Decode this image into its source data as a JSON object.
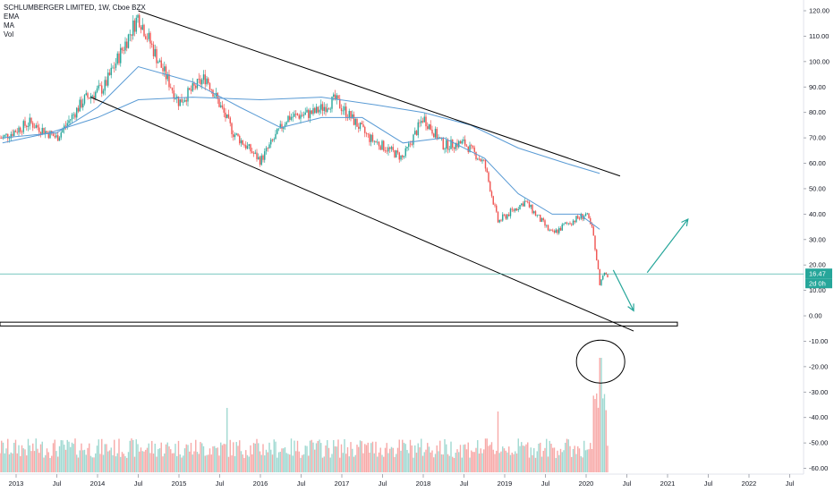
{
  "legend": {
    "title": "SCHLUMBERGER LIMITED, 1W, Cboe BZX",
    "line2": "EMA",
    "line3": "MA",
    "line4": "Vol"
  },
  "price_tag": {
    "value": "16.47",
    "countdown": "2d 0h",
    "color": "#26a69a"
  },
  "colors": {
    "up": "#26a69a",
    "down": "#ef5350",
    "vol_up": "#9fd9d1",
    "vol_down": "#f7a9a7",
    "ma": "#5a9bd5",
    "trend": "#000000"
  },
  "chart_data": {
    "type": "candlestick",
    "y_axis": {
      "ticks": [
        "120.00",
        "110.00",
        "100.00",
        "90.00",
        "80.00",
        "70.00",
        "60.00",
        "50.00",
        "40.00",
        "30.00",
        "20.00",
        "10.00",
        "0.00",
        "-10.00",
        "-20.00",
        "-30.00",
        "-40.00",
        "-50.00",
        "-60.00"
      ]
    },
    "x_axis": {
      "ticks": [
        "2013",
        "Jul",
        "2014",
        "Jul",
        "2015",
        "Jul",
        "2016",
        "Jul",
        "2017",
        "Jul",
        "2018",
        "Jul",
        "2019",
        "Jul",
        "2020",
        "Jul",
        "2021",
        "Jul",
        "2022",
        "Jul"
      ]
    },
    "price_path": [
      [
        "2012-11",
        70
      ],
      [
        "2013-03",
        76
      ],
      [
        "2013-07",
        70
      ],
      [
        "2013-11",
        85
      ],
      [
        "2014-02",
        90
      ],
      [
        "2014-07",
        118
      ],
      [
        "2014-10",
        100
      ],
      [
        "2015-01",
        84
      ],
      [
        "2015-05",
        94
      ],
      [
        "2015-09",
        72
      ],
      [
        "2016-01",
        61
      ],
      [
        "2016-05",
        78
      ],
      [
        "2016-09",
        80
      ],
      [
        "2016-12",
        85
      ],
      [
        "2017-05",
        70
      ],
      [
        "2017-10",
        62
      ],
      [
        "2018-01",
        78
      ],
      [
        "2018-04",
        67
      ],
      [
        "2018-07",
        68
      ],
      [
        "2018-10",
        60
      ],
      [
        "2018-12",
        37
      ],
      [
        "2019-04",
        45
      ],
      [
        "2019-08",
        32
      ],
      [
        "2019-10",
        36
      ],
      [
        "2020-01",
        40
      ],
      [
        "2020-02",
        33
      ],
      [
        "2020-03",
        13
      ],
      [
        "2020-04",
        16.47
      ]
    ],
    "ema_path": [
      [
        "2012-11",
        70
      ],
      [
        "2013-07",
        72
      ],
      [
        "2014-01",
        82
      ],
      [
        "2014-07",
        98
      ],
      [
        "2015-03",
        92
      ],
      [
        "2015-10",
        82
      ],
      [
        "2016-04",
        74
      ],
      [
        "2016-10",
        78
      ],
      [
        "2017-04",
        78
      ],
      [
        "2017-10",
        68
      ],
      [
        "2018-04",
        70
      ],
      [
        "2018-10",
        62
      ],
      [
        "2019-03",
        48
      ],
      [
        "2019-08",
        40
      ],
      [
        "2019-12",
        40
      ],
      [
        "2020-03",
        34
      ]
    ],
    "ma_path": [
      [
        "2012-11",
        68
      ],
      [
        "2013-06",
        72
      ],
      [
        "2014-01",
        78
      ],
      [
        "2014-07",
        85
      ],
      [
        "2015-03",
        86
      ],
      [
        "2016-01",
        85
      ],
      [
        "2016-10",
        86
      ],
      [
        "2017-06",
        83
      ],
      [
        "2018-01",
        80
      ],
      [
        "2018-08",
        75
      ],
      [
        "2019-03",
        66
      ],
      [
        "2019-10",
        60
      ],
      [
        "2020-03",
        56
      ]
    ],
    "trendlines": [
      {
        "from": [
          "2014-07",
          120
        ],
        "to": [
          "2020-06",
          55
        ]
      },
      {
        "from": [
          "2013-12",
          86
        ],
        "to": [
          "2020-08",
          -6
        ]
      }
    ],
    "support_zone": {
      "top": -2.5,
      "bottom": -4
    },
    "current_price_line": 16.47,
    "arrows": [
      {
        "from": [
          "2020-05",
          18
        ],
        "to": [
          "2020-08",
          2
        ]
      },
      {
        "from": [
          "2020-10",
          17
        ],
        "to": [
          "2021-04",
          38
        ]
      }
    ],
    "volume_spike_circle": {
      "at": "2020-03",
      "y": -18
    }
  }
}
